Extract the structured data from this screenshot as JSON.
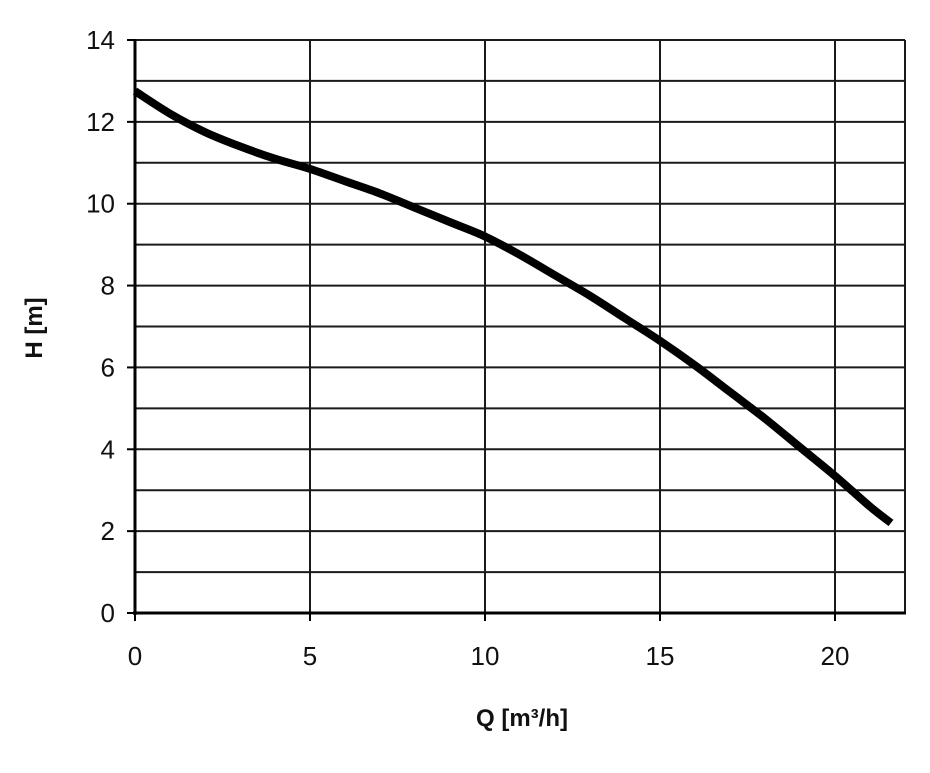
{
  "chart_data": {
    "type": "line",
    "title": "",
    "xlabel": "Q [m³/h]",
    "ylabel": "H [m]",
    "xlim": [
      0,
      22
    ],
    "ylim": [
      0,
      14
    ],
    "x_ticks": [
      0,
      5,
      10,
      15,
      20
    ],
    "y_ticks": [
      0,
      2,
      4,
      6,
      8,
      10,
      12,
      14
    ],
    "x_minor_step": 5,
    "y_minor_step": 1,
    "grid": true,
    "legend": "none",
    "series": [
      {
        "line_color": "#000000",
        "x": [
          0,
          1,
          2,
          3,
          4,
          5,
          6,
          7,
          8,
          9,
          10,
          11,
          12,
          13,
          14,
          15,
          16,
          17,
          18,
          19,
          20,
          21,
          21.6
        ],
        "y": [
          12.75,
          12.2,
          11.75,
          11.4,
          11.1,
          10.85,
          10.55,
          10.25,
          9.9,
          9.55,
          9.2,
          8.75,
          8.25,
          7.75,
          7.2,
          6.65,
          6.05,
          5.4,
          4.75,
          4.05,
          3.35,
          2.6,
          2.2
        ]
      }
    ]
  }
}
